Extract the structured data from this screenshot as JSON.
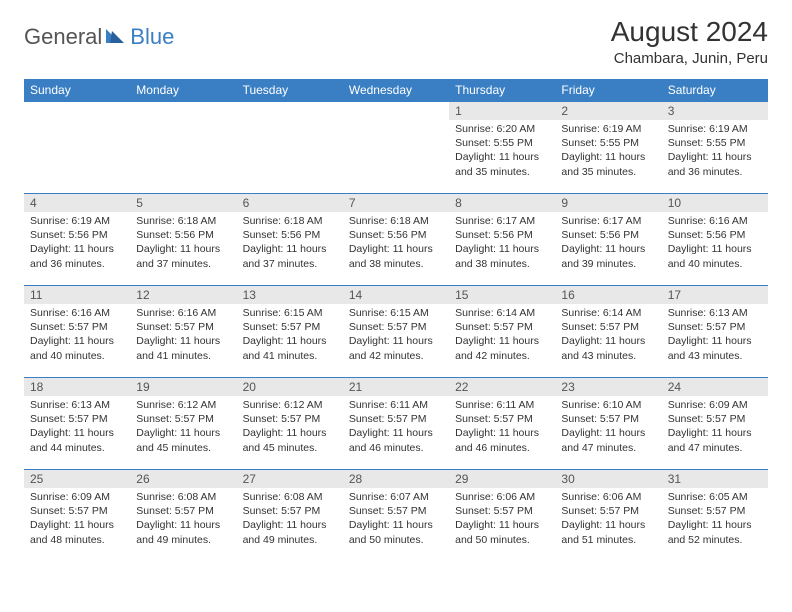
{
  "logo": {
    "general": "General",
    "blue": "Blue"
  },
  "title": "August 2024",
  "location": "Chambara, Junin, Peru",
  "colors": {
    "header_bg": "#3a7fc4",
    "header_text": "#ffffff",
    "daynum_bg": "#e8e8e8",
    "border": "#3a7fc4",
    "text": "#333333"
  },
  "weekdays": [
    "Sunday",
    "Monday",
    "Tuesday",
    "Wednesday",
    "Thursday",
    "Friday",
    "Saturday"
  ],
  "grid": [
    [
      null,
      null,
      null,
      null,
      {
        "n": "1",
        "sr": "6:20 AM",
        "ss": "5:55 PM",
        "dl": "11 hours and 35 minutes."
      },
      {
        "n": "2",
        "sr": "6:19 AM",
        "ss": "5:55 PM",
        "dl": "11 hours and 35 minutes."
      },
      {
        "n": "3",
        "sr": "6:19 AM",
        "ss": "5:55 PM",
        "dl": "11 hours and 36 minutes."
      }
    ],
    [
      {
        "n": "4",
        "sr": "6:19 AM",
        "ss": "5:56 PM",
        "dl": "11 hours and 36 minutes."
      },
      {
        "n": "5",
        "sr": "6:18 AM",
        "ss": "5:56 PM",
        "dl": "11 hours and 37 minutes."
      },
      {
        "n": "6",
        "sr": "6:18 AM",
        "ss": "5:56 PM",
        "dl": "11 hours and 37 minutes."
      },
      {
        "n": "7",
        "sr": "6:18 AM",
        "ss": "5:56 PM",
        "dl": "11 hours and 38 minutes."
      },
      {
        "n": "8",
        "sr": "6:17 AM",
        "ss": "5:56 PM",
        "dl": "11 hours and 38 minutes."
      },
      {
        "n": "9",
        "sr": "6:17 AM",
        "ss": "5:56 PM",
        "dl": "11 hours and 39 minutes."
      },
      {
        "n": "10",
        "sr": "6:16 AM",
        "ss": "5:56 PM",
        "dl": "11 hours and 40 minutes."
      }
    ],
    [
      {
        "n": "11",
        "sr": "6:16 AM",
        "ss": "5:57 PM",
        "dl": "11 hours and 40 minutes."
      },
      {
        "n": "12",
        "sr": "6:16 AM",
        "ss": "5:57 PM",
        "dl": "11 hours and 41 minutes."
      },
      {
        "n": "13",
        "sr": "6:15 AM",
        "ss": "5:57 PM",
        "dl": "11 hours and 41 minutes."
      },
      {
        "n": "14",
        "sr": "6:15 AM",
        "ss": "5:57 PM",
        "dl": "11 hours and 42 minutes."
      },
      {
        "n": "15",
        "sr": "6:14 AM",
        "ss": "5:57 PM",
        "dl": "11 hours and 42 minutes."
      },
      {
        "n": "16",
        "sr": "6:14 AM",
        "ss": "5:57 PM",
        "dl": "11 hours and 43 minutes."
      },
      {
        "n": "17",
        "sr": "6:13 AM",
        "ss": "5:57 PM",
        "dl": "11 hours and 43 minutes."
      }
    ],
    [
      {
        "n": "18",
        "sr": "6:13 AM",
        "ss": "5:57 PM",
        "dl": "11 hours and 44 minutes."
      },
      {
        "n": "19",
        "sr": "6:12 AM",
        "ss": "5:57 PM",
        "dl": "11 hours and 45 minutes."
      },
      {
        "n": "20",
        "sr": "6:12 AM",
        "ss": "5:57 PM",
        "dl": "11 hours and 45 minutes."
      },
      {
        "n": "21",
        "sr": "6:11 AM",
        "ss": "5:57 PM",
        "dl": "11 hours and 46 minutes."
      },
      {
        "n": "22",
        "sr": "6:11 AM",
        "ss": "5:57 PM",
        "dl": "11 hours and 46 minutes."
      },
      {
        "n": "23",
        "sr": "6:10 AM",
        "ss": "5:57 PM",
        "dl": "11 hours and 47 minutes."
      },
      {
        "n": "24",
        "sr": "6:09 AM",
        "ss": "5:57 PM",
        "dl": "11 hours and 47 minutes."
      }
    ],
    [
      {
        "n": "25",
        "sr": "6:09 AM",
        "ss": "5:57 PM",
        "dl": "11 hours and 48 minutes."
      },
      {
        "n": "26",
        "sr": "6:08 AM",
        "ss": "5:57 PM",
        "dl": "11 hours and 49 minutes."
      },
      {
        "n": "27",
        "sr": "6:08 AM",
        "ss": "5:57 PM",
        "dl": "11 hours and 49 minutes."
      },
      {
        "n": "28",
        "sr": "6:07 AM",
        "ss": "5:57 PM",
        "dl": "11 hours and 50 minutes."
      },
      {
        "n": "29",
        "sr": "6:06 AM",
        "ss": "5:57 PM",
        "dl": "11 hours and 50 minutes."
      },
      {
        "n": "30",
        "sr": "6:06 AM",
        "ss": "5:57 PM",
        "dl": "11 hours and 51 minutes."
      },
      {
        "n": "31",
        "sr": "6:05 AM",
        "ss": "5:57 PM",
        "dl": "11 hours and 52 minutes."
      }
    ]
  ],
  "labels": {
    "sunrise": "Sunrise:",
    "sunset": "Sunset:",
    "daylight": "Daylight:"
  }
}
